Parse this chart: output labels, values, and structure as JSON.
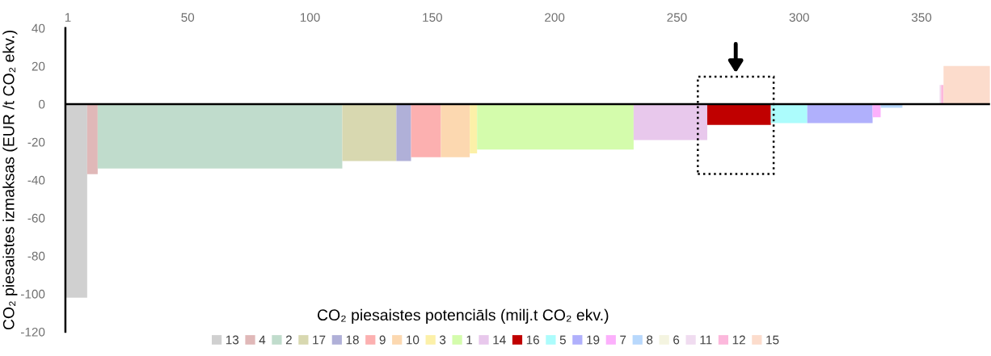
{
  "chart_data": {
    "type": "area",
    "xlabel": "CO₂ piesaistes potenciāls (milj.t CO₂ ekv.)",
    "ylabel": "CO₂ piesaistes izmaksas (EUR /t CO₂ ekv.)",
    "xlim": [
      0,
      378
    ],
    "xticks": [
      1,
      50,
      100,
      150,
      200,
      250,
      300,
      350
    ],
    "ylim": [
      -120,
      40
    ],
    "yticks": [
      -120,
      -100,
      -80,
      -60,
      -40,
      -20,
      0,
      20,
      40
    ],
    "grid": false,
    "legend": "bottom",
    "ref_lines": [
      {
        "axis": "y",
        "value": 0,
        "color": "#000000"
      }
    ],
    "series": [
      {
        "name": "13",
        "color": "#d0d0d0",
        "x": [
          0.3,
          8.9
        ],
        "values": [
          -102,
          -102
        ]
      },
      {
        "name": "4",
        "color": "#e0b8b8",
        "x": [
          8.9,
          13.2
        ],
        "values": [
          -37,
          -37
        ]
      },
      {
        "name": "2",
        "color": "#c0dccc",
        "x": [
          13.2,
          113.2
        ],
        "values": [
          -34,
          -34
        ]
      },
      {
        "name": "17",
        "color": "#d8d8b0",
        "x": [
          113.2,
          135.3
        ],
        "values": [
          -30,
          -30
        ]
      },
      {
        "name": "18",
        "color": "#b0b0d8",
        "x": [
          135.3,
          141.3
        ],
        "values": [
          -30,
          -30
        ]
      },
      {
        "name": "9",
        "color": "#fcb0b0",
        "x": [
          141.3,
          153.5
        ],
        "values": [
          -28,
          -28
        ]
      },
      {
        "name": "10",
        "color": "#fcd8b0",
        "x": [
          153.5,
          165.3
        ],
        "values": [
          -28,
          -28
        ]
      },
      {
        "name": "3",
        "color": "#fcf0a8",
        "x": [
          165.3,
          168.3
        ],
        "values": [
          -26,
          -26
        ]
      },
      {
        "name": "1",
        "color": "#d4fcac",
        "x": [
          168.3,
          232.3
        ],
        "values": [
          -24,
          -24
        ]
      },
      {
        "name": "14",
        "color": "#e8c8ec",
        "x": [
          232.3,
          262.4
        ],
        "values": [
          -19,
          -19
        ]
      },
      {
        "name": "16",
        "color": "#c00000",
        "x": [
          262.4,
          288.4
        ],
        "values": [
          -11,
          -11
        ]
      },
      {
        "name": "5",
        "color": "#acfcfc",
        "x": [
          288.4,
          303.3
        ],
        "values": [
          -10,
          -10
        ]
      },
      {
        "name": "19",
        "color": "#b0b0fc",
        "x": [
          303.3,
          330.0
        ],
        "values": [
          -10,
          -10
        ]
      },
      {
        "name": "7",
        "color": "#fcb0fc",
        "x": [
          330.0,
          333.3
        ],
        "values": [
          -7,
          -7
        ]
      },
      {
        "name": "8",
        "color": "#b8d8fc",
        "x": [
          333.3,
          342.2
        ],
        "values": [
          -2,
          -2
        ]
      },
      {
        "name": "6",
        "color": "#f4f4e0"
      },
      {
        "name": "11",
        "color": "#f0dcf0",
        "x": [
          357.4,
          358.0
        ],
        "values": [
          10,
          10
        ]
      },
      {
        "name": "12",
        "color": "#fcb8dc",
        "x": [
          358.0,
          359.0
        ],
        "values": [
          10,
          10
        ]
      },
      {
        "name": "15",
        "color": "#fcdccc",
        "x": [
          359.0,
          378.0
        ],
        "values": [
          20,
          20
        ]
      }
    ]
  }
}
